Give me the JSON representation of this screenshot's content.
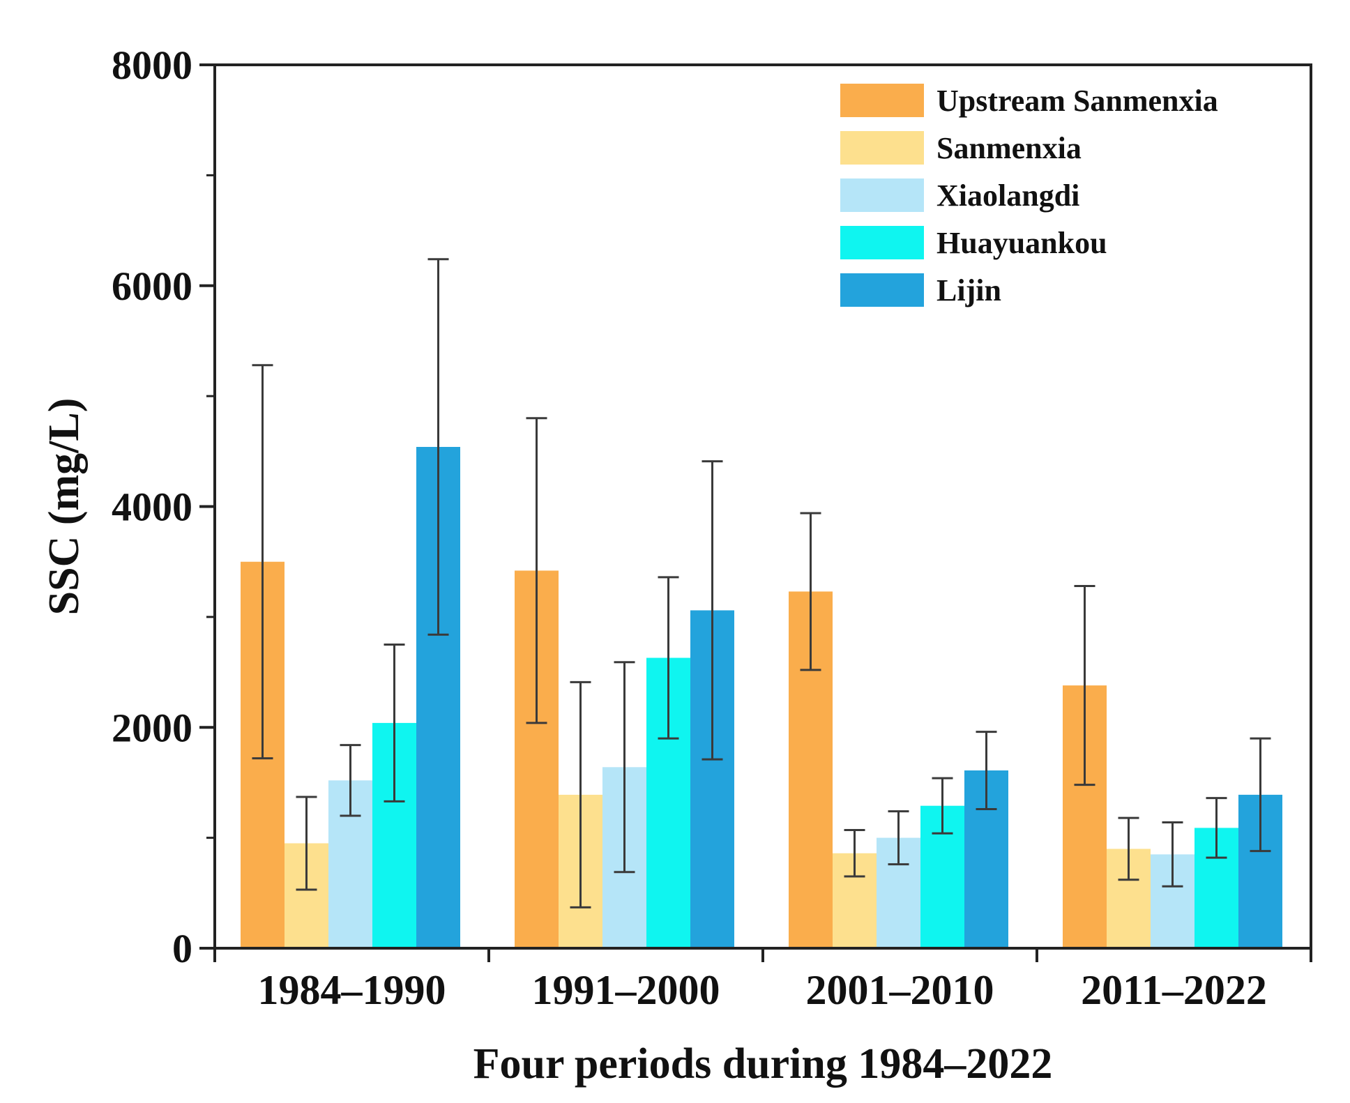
{
  "chart_data": {
    "type": "bar",
    "title": "",
    "xlabel": "Four periods during 1984–2022",
    "ylabel": "SSC (mg/L)",
    "ylim": [
      0,
      8000
    ],
    "yticks": [
      0,
      2000,
      4000,
      6000,
      8000
    ],
    "ytick_labels": [
      "0",
      "2000",
      "4000",
      "6000",
      "8000"
    ],
    "grid": false,
    "legend_position": "top-right",
    "categories": [
      "1984–1990",
      "1991–2000",
      "2001–2010",
      "2011–2022"
    ],
    "series": [
      {
        "name": "Upstream Sanmenxia",
        "color": "#FAAD4C",
        "values": [
          3500,
          3420,
          3230,
          2380
        ],
        "errors": [
          1780,
          1380,
          710,
          900
        ]
      },
      {
        "name": "Sanmenxia",
        "color": "#FDE08E",
        "values": [
          950,
          1390,
          860,
          900
        ],
        "errors": [
          420,
          1020,
          210,
          280
        ]
      },
      {
        "name": "Xiaolangdi",
        "color": "#B5E5F8",
        "values": [
          1520,
          1640,
          1000,
          850
        ],
        "errors": [
          320,
          950,
          240,
          290
        ]
      },
      {
        "name": "Huayuankou",
        "color": "#0FF5F0",
        "values": [
          2040,
          2630,
          1290,
          1090
        ],
        "errors": [
          710,
          730,
          250,
          270
        ]
      },
      {
        "name": "Lijin",
        "color": "#23A3DC",
        "values": [
          4540,
          3060,
          1610,
          1390
        ],
        "errors": [
          1700,
          1350,
          350,
          510
        ]
      }
    ]
  }
}
